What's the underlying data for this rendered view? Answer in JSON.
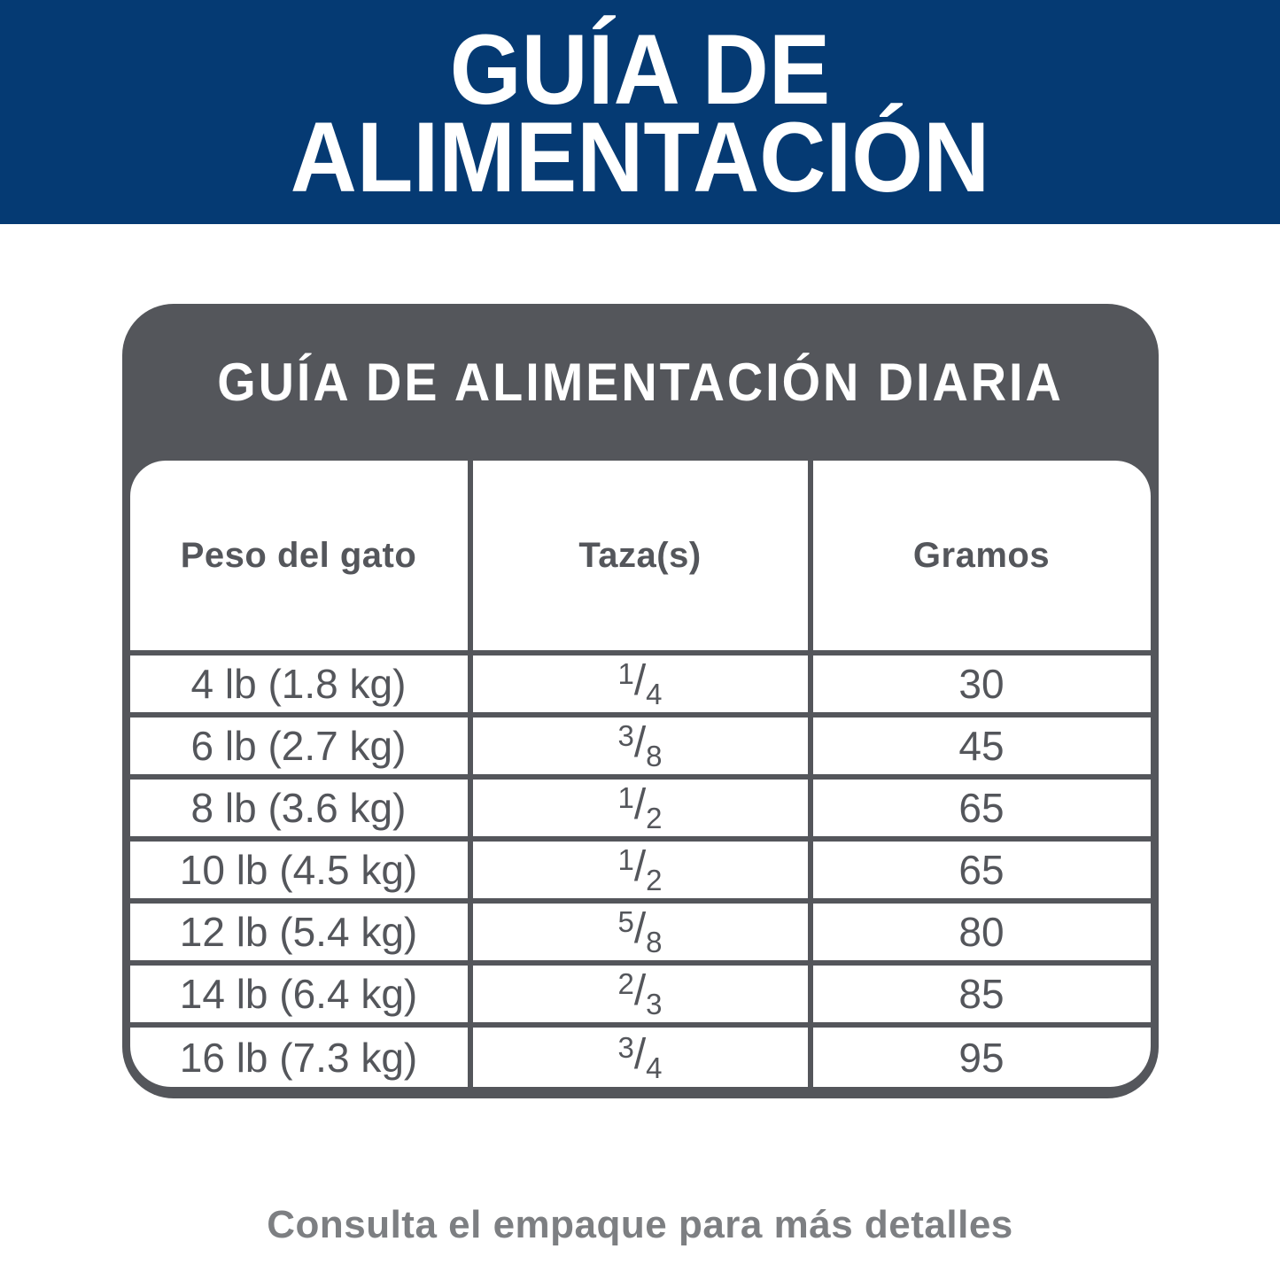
{
  "banner": {
    "title_line1": "GUÍA DE",
    "title_line2": "ALIMENTACIÓN"
  },
  "card": {
    "title": "GUÍA DE ALIMENTACIÓN DIARIA",
    "table": {
      "headers": [
        "Peso del gato",
        "Taza(s)",
        "Gramos"
      ],
      "fraction_separator": "/",
      "rows": [
        {
          "weight": "4 lb (1.8 kg)",
          "cups": {
            "num": "1",
            "den": "4"
          },
          "grams": "30"
        },
        {
          "weight": "6 lb (2.7 kg)",
          "cups": {
            "num": "3",
            "den": "8"
          },
          "grams": "45"
        },
        {
          "weight": "8 lb (3.6 kg)",
          "cups": {
            "num": "1",
            "den": "2"
          },
          "grams": "65"
        },
        {
          "weight": "10 lb (4.5 kg)",
          "cups": {
            "num": "1",
            "den": "2"
          },
          "grams": "65"
        },
        {
          "weight": "12 lb (5.4 kg)",
          "cups": {
            "num": "5",
            "den": "8"
          },
          "grams": "80"
        },
        {
          "weight": "14 lb (6.4 kg)",
          "cups": {
            "num": "2",
            "den": "3"
          },
          "grams": "85"
        },
        {
          "weight": "16 lb (7.3 kg)",
          "cups": {
            "num": "3",
            "den": "4"
          },
          "grams": "95"
        }
      ]
    }
  },
  "footer": {
    "note": "Consulta el empaque para más detalles"
  },
  "colors": {
    "brand_blue": "#053a73",
    "dark_gray": "#54565b",
    "note_gray": "#7d7f82"
  }
}
